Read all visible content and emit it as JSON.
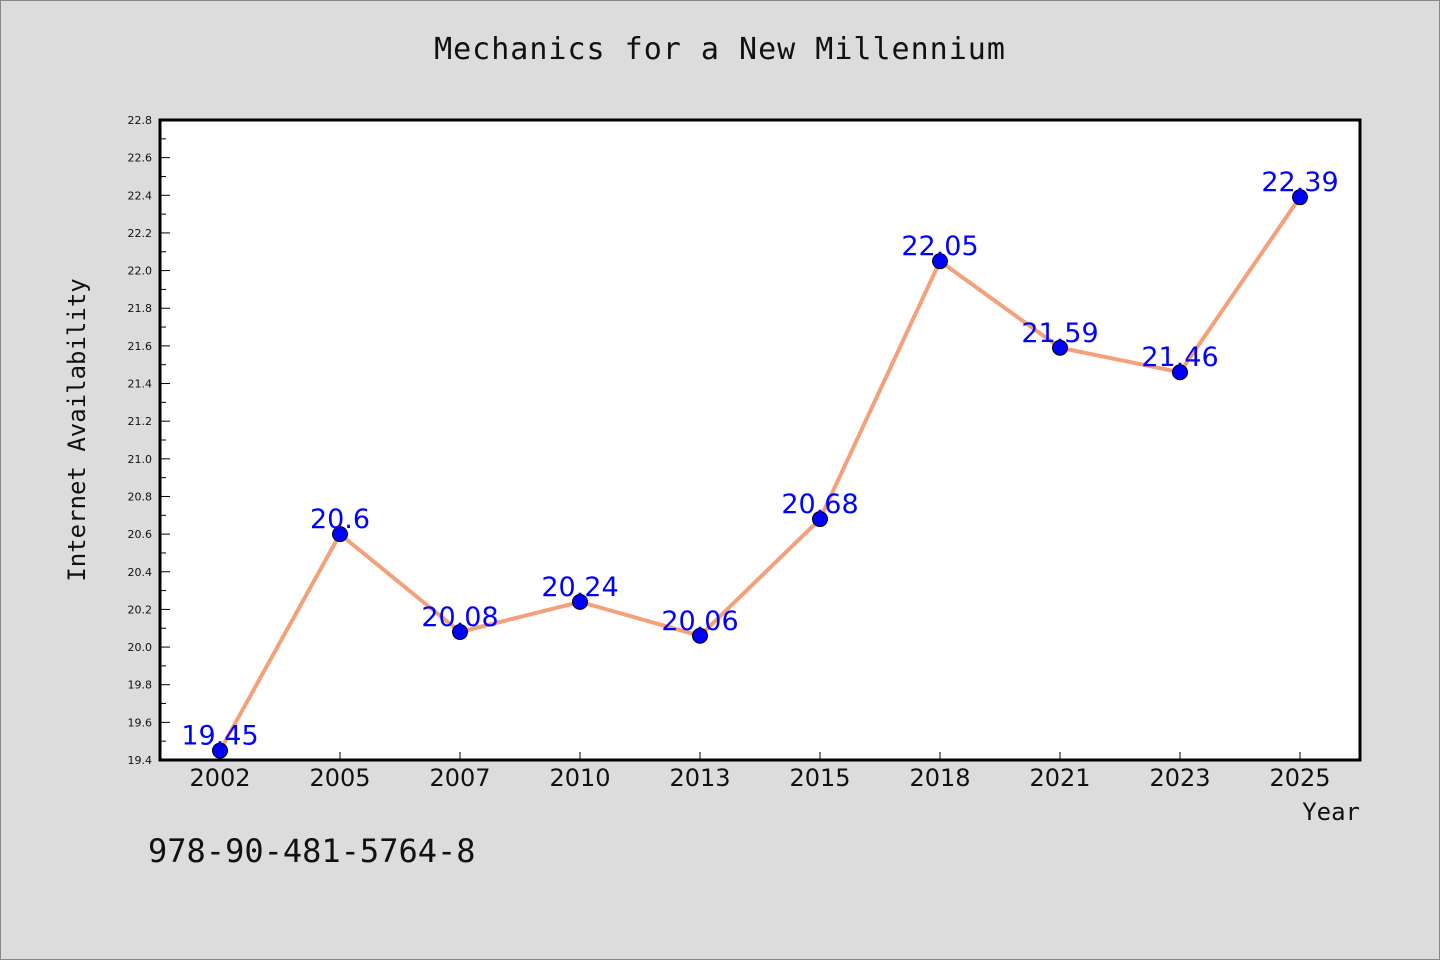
{
  "chart_data": {
    "type": "line",
    "title": "Mechanics for a New Millennium",
    "xlabel": "Year",
    "ylabel": "Internet Availability",
    "categories": [
      "2002",
      "2005",
      "2007",
      "2010",
      "2013",
      "2015",
      "2018",
      "2021",
      "2023",
      "2025"
    ],
    "series": [
      {
        "values": [
          19.45,
          20.6,
          20.08,
          20.24,
          20.06,
          20.68,
          22.05,
          21.59,
          21.46,
          22.39
        ],
        "data_labels": [
          "19.45",
          "20.6",
          "20.08",
          "20.24",
          "20.06",
          "20.68",
          "22.05",
          "21.59",
          "21.46",
          "22.39"
        ]
      }
    ],
    "ylim": [
      19.4,
      22.8
    ],
    "yticks": [
      "19.4",
      "19.6",
      "19.8",
      "20.0",
      "20.2",
      "20.4",
      "20.6",
      "20.8",
      "21.0",
      "21.2",
      "21.4",
      "21.6",
      "21.8",
      "22.0",
      "22.2",
      "22.4",
      "22.6",
      "22.8"
    ],
    "grid": false,
    "colors": {
      "line": "#f4a07a",
      "marker": "#0000ff",
      "data_label": "#0000ff",
      "background": "#dcdcdc",
      "plot_background": "#ffffff"
    }
  },
  "footer": {
    "isbn": "978-90-481-5764-8"
  }
}
